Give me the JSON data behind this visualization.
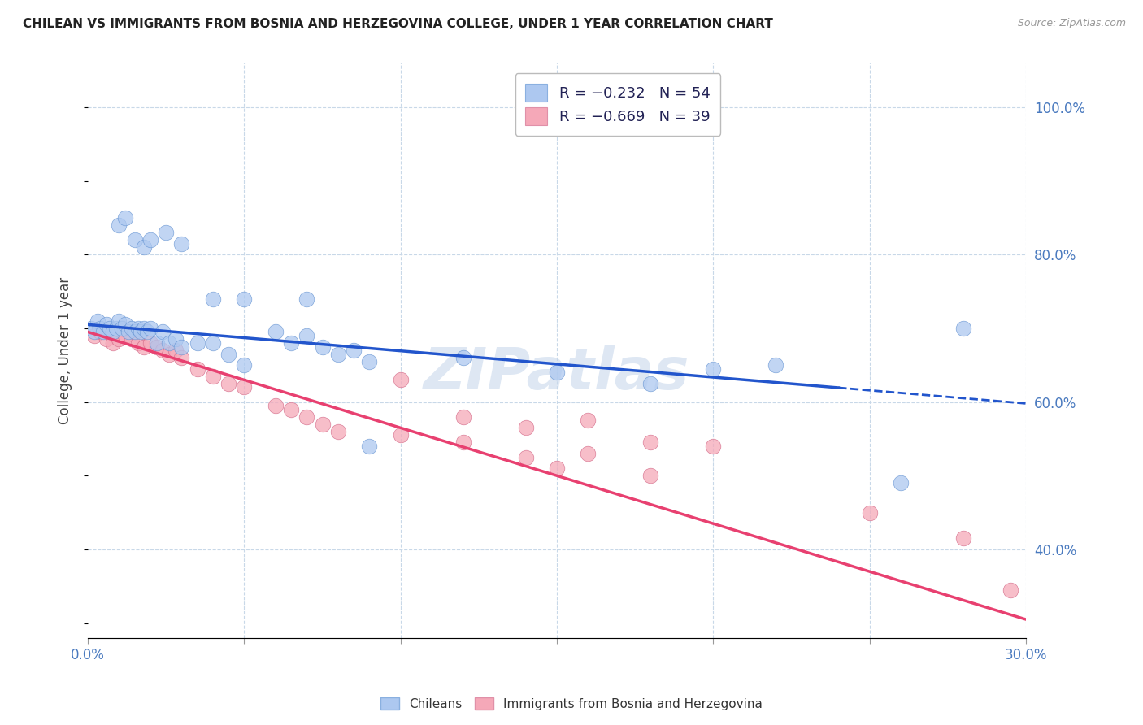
{
  "title": "CHILEAN VS IMMIGRANTS FROM BOSNIA AND HERZEGOVINA COLLEGE, UNDER 1 YEAR CORRELATION CHART",
  "source": "Source: ZipAtlas.com",
  "ylabel": "College, Under 1 year",
  "xlim": [
    0.0,
    0.3
  ],
  "ylim": [
    0.28,
    1.06
  ],
  "x_ticks": [
    0.0,
    0.05,
    0.1,
    0.15,
    0.2,
    0.25,
    0.3
  ],
  "x_tick_labels": [
    "0.0%",
    "",
    "",
    "",
    "",
    "",
    "30.0%"
  ],
  "y_ticks_right": [
    0.4,
    0.6,
    0.8,
    1.0
  ],
  "y_tick_labels_right": [
    "40.0%",
    "60.0%",
    "80.0%",
    "100.0%"
  ],
  "chilean_color": "#adc8f0",
  "bosnian_color": "#f5a8b8",
  "chilean_line_color": "#2255cc",
  "bosnian_line_color": "#e84070",
  "legend_label_1": "R = −0.232   N = 54",
  "legend_label_2": "R = −0.669   N = 39",
  "watermark": "ZIPatlas",
  "chilean_line_x0": 0.0,
  "chilean_line_y0": 0.705,
  "chilean_line_x1": 0.3,
  "chilean_line_y1": 0.598,
  "bosnian_line_x0": 0.0,
  "bosnian_line_y0": 0.695,
  "bosnian_line_x1": 0.3,
  "bosnian_line_y1": 0.305,
  "chilean_x": [
    0.001,
    0.002,
    0.003,
    0.004,
    0.005,
    0.006,
    0.007,
    0.008,
    0.009,
    0.01,
    0.011,
    0.012,
    0.013,
    0.014,
    0.015,
    0.016,
    0.017,
    0.018,
    0.019,
    0.02,
    0.022,
    0.024,
    0.026,
    0.028,
    0.03,
    0.035,
    0.04,
    0.045,
    0.05,
    0.06,
    0.065,
    0.07,
    0.075,
    0.08,
    0.085,
    0.09,
    0.01,
    0.012,
    0.015,
    0.018,
    0.02,
    0.025,
    0.03,
    0.04,
    0.05,
    0.07,
    0.09,
    0.12,
    0.15,
    0.18,
    0.2,
    0.22,
    0.26,
    0.28
  ],
  "chilean_y": [
    0.7,
    0.695,
    0.71,
    0.7,
    0.695,
    0.705,
    0.7,
    0.695,
    0.7,
    0.71,
    0.7,
    0.705,
    0.695,
    0.7,
    0.695,
    0.7,
    0.695,
    0.7,
    0.695,
    0.7,
    0.68,
    0.695,
    0.68,
    0.685,
    0.675,
    0.68,
    0.68,
    0.665,
    0.65,
    0.695,
    0.68,
    0.69,
    0.675,
    0.665,
    0.67,
    0.655,
    0.84,
    0.85,
    0.82,
    0.81,
    0.82,
    0.83,
    0.815,
    0.74,
    0.74,
    0.74,
    0.54,
    0.66,
    0.64,
    0.625,
    0.645,
    0.65,
    0.49,
    0.7
  ],
  "bosnian_x": [
    0.002,
    0.004,
    0.006,
    0.008,
    0.01,
    0.012,
    0.014,
    0.016,
    0.018,
    0.02,
    0.022,
    0.024,
    0.026,
    0.028,
    0.03,
    0.035,
    0.04,
    0.045,
    0.05,
    0.06,
    0.065,
    0.07,
    0.075,
    0.08,
    0.1,
    0.12,
    0.14,
    0.15,
    0.16,
    0.18,
    0.1,
    0.12,
    0.14,
    0.16,
    0.18,
    0.2,
    0.25,
    0.28,
    0.295
  ],
  "bosnian_y": [
    0.69,
    0.695,
    0.685,
    0.68,
    0.685,
    0.69,
    0.685,
    0.68,
    0.675,
    0.68,
    0.675,
    0.67,
    0.665,
    0.67,
    0.66,
    0.645,
    0.635,
    0.625,
    0.62,
    0.595,
    0.59,
    0.58,
    0.57,
    0.56,
    0.555,
    0.545,
    0.525,
    0.51,
    0.53,
    0.5,
    0.63,
    0.58,
    0.565,
    0.575,
    0.545,
    0.54,
    0.45,
    0.415,
    0.345
  ]
}
